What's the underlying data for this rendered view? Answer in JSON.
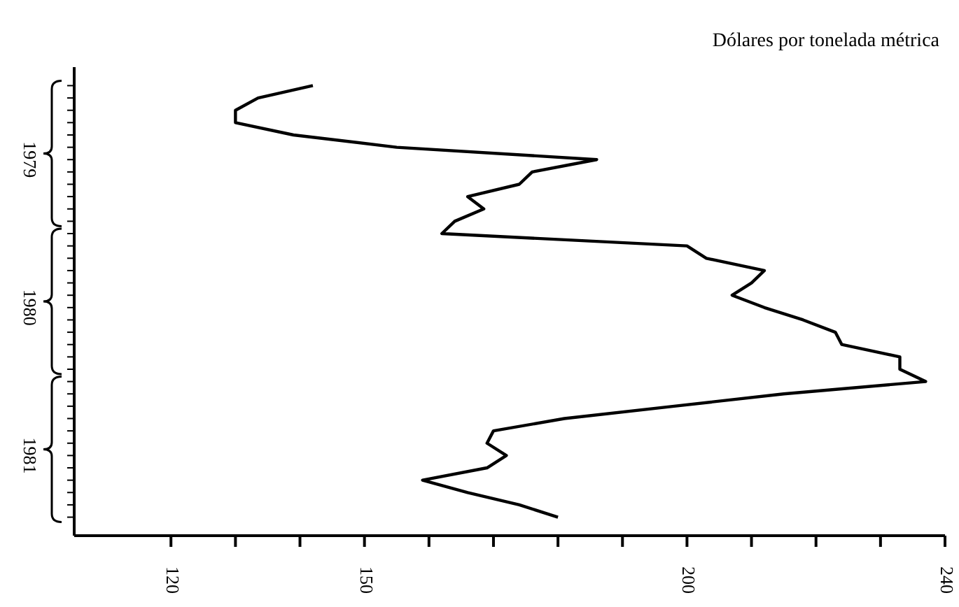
{
  "chart_data": {
    "type": "line",
    "orientation": "horizontal",
    "title": "Dólares por tonelada métrica",
    "categories": [
      null,
      null,
      null,
      null,
      null,
      null,
      "1979",
      null,
      null,
      null,
      null,
      null,
      null,
      null,
      null,
      null,
      null,
      null,
      "1980",
      null,
      null,
      null,
      null,
      null,
      null,
      null,
      null,
      null,
      null,
      null,
      "1981",
      null,
      null,
      null,
      null,
      null
    ],
    "series": [
      {
        "color": "#000000",
        "values": [
          142,
          133.5,
          130,
          130,
          139,
          155,
          186,
          176,
          174,
          166,
          168.5,
          164,
          162,
          200,
          203,
          212,
          210,
          207,
          212,
          218,
          223,
          224,
          233,
          233,
          237,
          215,
          198,
          181,
          170,
          169,
          172,
          169,
          159,
          166,
          174,
          180
        ]
      }
    ],
    "xlim": [
      105,
      240
    ],
    "xticks": [
      120,
      {
        "value": 130,
        "label": null
      },
      {
        "value": 140,
        "label": null
      },
      150,
      {
        "value": 160,
        "label": null
      },
      {
        "value": 170,
        "label": null
      },
      {
        "value": 180,
        "label": null
      },
      {
        "value": 190,
        "label": null
      },
      200,
      {
        "value": 210,
        "label": null
      },
      {
        "value": 220,
        "label": null
      },
      {
        "value": 230,
        "label": null
      },
      240
    ],
    "marker": "none",
    "line_style": "solid"
  }
}
